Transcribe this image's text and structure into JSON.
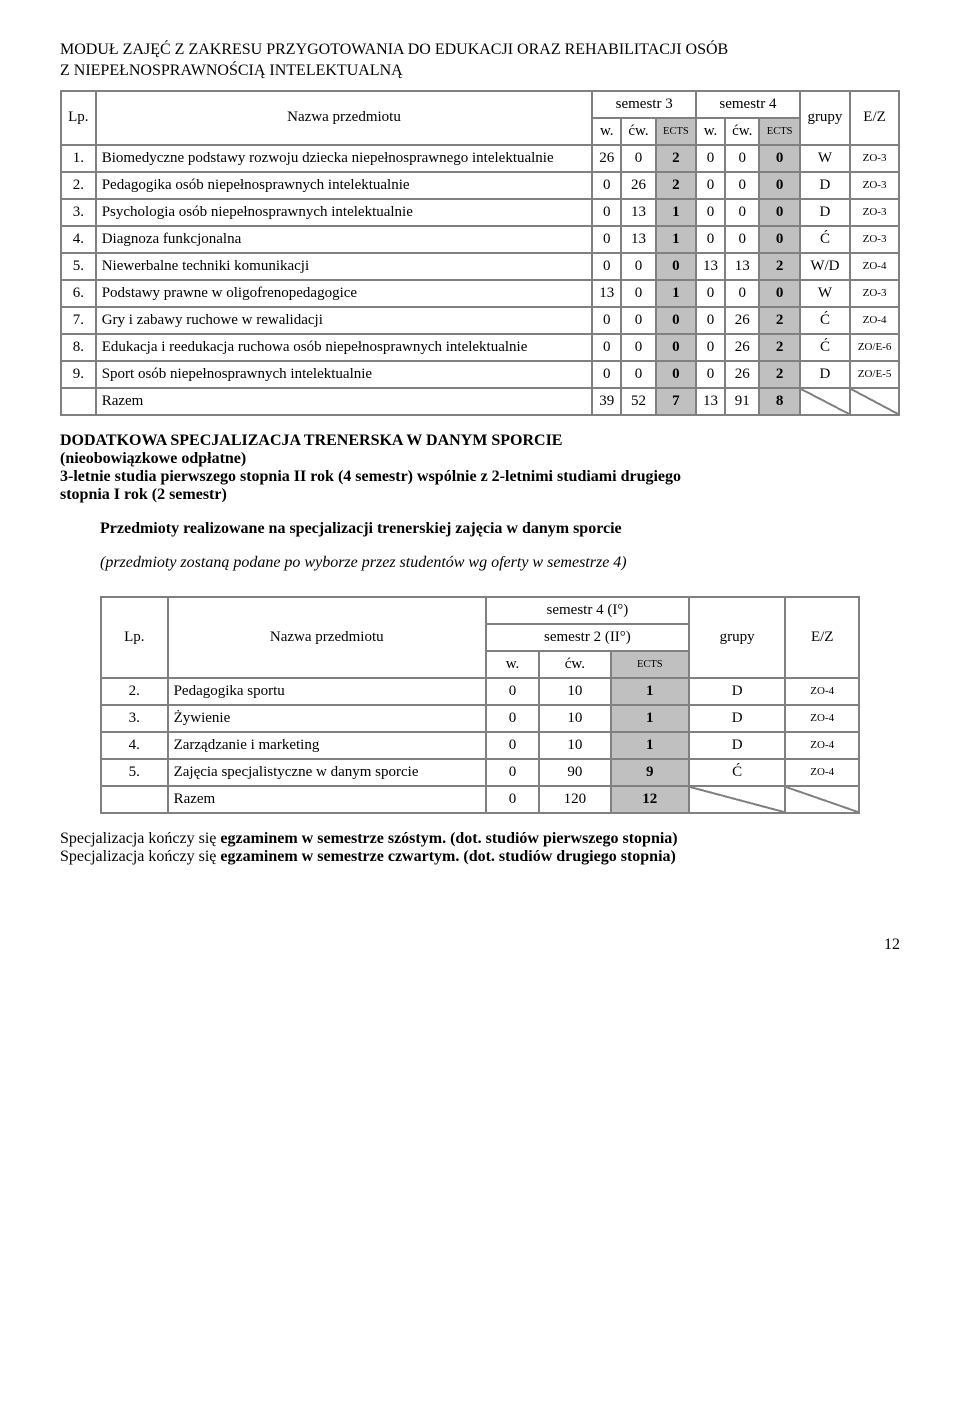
{
  "module_title_line1": "MODUŁ ZAJĘĆ Z ZAKRESU PRZYGOTOWANIA DO EDUKACJI ORAZ REHABILITACJI OSÓB",
  "module_title_line2": "Z NIEPEŁNOSPRAWNOŚCIĄ INTELEKTUALNĄ",
  "t1": {
    "hdr": {
      "lp": "Lp.",
      "name": "Nazwa przedmiotu",
      "sem3": "semestr 3",
      "sem4": "semestr 4",
      "grupy": "grupy",
      "ez": "E/Z",
      "w": "w.",
      "cw": "ćw.",
      "ects": "ECTS"
    },
    "rows": [
      {
        "n": "1.",
        "name": "Biomedyczne podstawy rozwoju dziecka niepełnosprawnego intelektualnie",
        "s3w": "26",
        "s3c": "0",
        "s3e": "2",
        "s4w": "0",
        "s4c": "0",
        "s4e": "0",
        "g": "W",
        "ez": "ZO-3"
      },
      {
        "n": "2.",
        "name": "Pedagogika osób niepełnosprawnych intelektualnie",
        "s3w": "0",
        "s3c": "26",
        "s3e": "2",
        "s4w": "0",
        "s4c": "0",
        "s4e": "0",
        "g": "D",
        "ez": "ZO-3"
      },
      {
        "n": "3.",
        "name": "Psychologia osób niepełnosprawnych intelektualnie",
        "s3w": "0",
        "s3c": "13",
        "s3e": "1",
        "s4w": "0",
        "s4c": "0",
        "s4e": "0",
        "g": "D",
        "ez": "ZO-3"
      },
      {
        "n": "4.",
        "name": "Diagnoza funkcjonalna",
        "s3w": "0",
        "s3c": "13",
        "s3e": "1",
        "s4w": "0",
        "s4c": "0",
        "s4e": "0",
        "g": "Ć",
        "ez": "ZO-3"
      },
      {
        "n": "5.",
        "name": "Niewerbalne techniki komunikacji",
        "s3w": "0",
        "s3c": "0",
        "s3e": "0",
        "s4w": "13",
        "s4c": "13",
        "s4e": "2",
        "g": "W/D",
        "ez": "ZO-4"
      },
      {
        "n": "6.",
        "name": "Podstawy prawne w oligofrenopedagogice",
        "s3w": "13",
        "s3c": "0",
        "s3e": "1",
        "s4w": "0",
        "s4c": "0",
        "s4e": "0",
        "g": "W",
        "ez": "ZO-3"
      },
      {
        "n": "7.",
        "name": "Gry i zabawy ruchowe w rewalidacji",
        "s3w": "0",
        "s3c": "0",
        "s3e": "0",
        "s4w": "0",
        "s4c": "26",
        "s4e": "2",
        "g": "Ć",
        "ez": "ZO-4"
      },
      {
        "n": "8.",
        "name": "Edukacja i reedukacja ruchowa osób niepełnosprawnych intelektualnie",
        "s3w": "0",
        "s3c": "0",
        "s3e": "0",
        "s4w": "0",
        "s4c": "26",
        "s4e": "2",
        "g": "Ć",
        "ez": "ZO/E-6"
      },
      {
        "n": "9.",
        "name": "Sport osób niepełnosprawnych intelektualnie",
        "s3w": "0",
        "s3c": "0",
        "s3e": "0",
        "s4w": "0",
        "s4c": "26",
        "s4e": "2",
        "g": "D",
        "ez": "ZO/E-5"
      }
    ],
    "total": {
      "label": "Razem",
      "s3w": "39",
      "s3c": "52",
      "s3e": "7",
      "s4w": "13",
      "s4c": "91",
      "s4e": "8"
    }
  },
  "extras": {
    "title": "DODATKOWA SPECJALIZACJA TRENERSKA W DANYM SPORCIE",
    "sub1": "(nieobowiązkowe odpłatne)",
    "sub2a": "3-letnie studia pierwszego stopnia II rok (4 semestr) wspólnie z 2-letnimi studiami drugiego",
    "sub2b": "stopnia I rok (2 semestr)",
    "line3": "Przedmioty realizowane na specjalizacji trenerskiej zajęcia w danym sporcie",
    "line4": "(przedmioty zostaną podane po wyborze przez studentów wg oferty w semestrze 4)"
  },
  "t2": {
    "hdr": {
      "lp": "Lp.",
      "name": "Nazwa przedmiotu",
      "sem4": "semestr 4 (I°)",
      "sem2": "semestr 2 (II°)",
      "grupy": "grupy",
      "ez": "E/Z",
      "w": "w.",
      "cw": "ćw.",
      "ects": "ECTS"
    },
    "rows": [
      {
        "n": "2.",
        "name": "Pedagogika sportu",
        "w": "0",
        "c": "10",
        "e": "1",
        "g": "D",
        "ez": "ZO-4"
      },
      {
        "n": "3.",
        "name": "Żywienie",
        "w": "0",
        "c": "10",
        "e": "1",
        "g": "D",
        "ez": "ZO-4"
      },
      {
        "n": "4.",
        "name": "Zarządzanie i marketing",
        "w": "0",
        "c": "10",
        "e": "1",
        "g": "D",
        "ez": "ZO-4"
      },
      {
        "n": "5.",
        "name": "Zajęcia specjalistyczne w danym sporcie",
        "w": "0",
        "c": "90",
        "e": "9",
        "g": "Ć",
        "ez": "ZO-4"
      }
    ],
    "total": {
      "label": "Razem",
      "w": "0",
      "c": "120",
      "e": "12"
    }
  },
  "footnotes": {
    "l1a": "Specjalizacja kończy się ",
    "l1b": "egzaminem w semestrze szóstym. (dot. studiów pierwszego stopnia)",
    "l2a": "Specjalizacja kończy się ",
    "l2b": "egzaminem w semestrze czwartym. (dot. studiów drugiego stopnia)"
  },
  "page_num": "12"
}
